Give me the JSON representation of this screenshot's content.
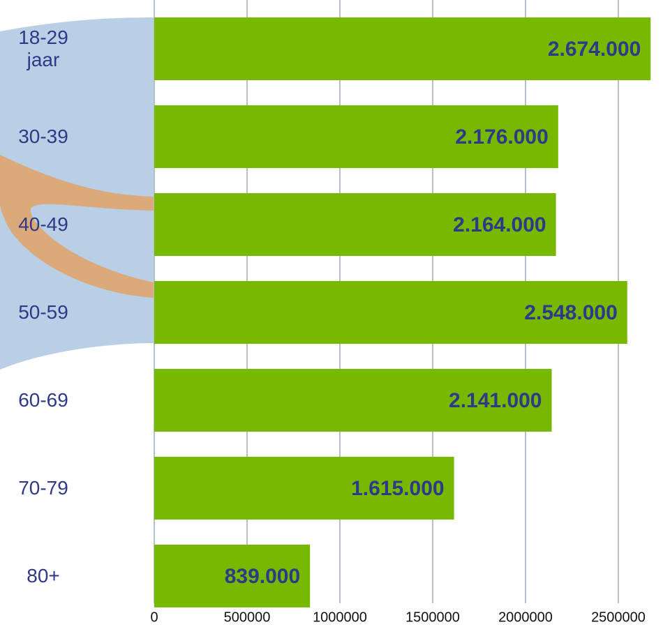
{
  "chart_data": {
    "type": "hbar",
    "categories": [
      "18-29 jaar",
      "30-39",
      "40-49",
      "50-59",
      "60-69",
      "70-79",
      "80+"
    ],
    "values": [
      2674000,
      2176000,
      2164000,
      2548000,
      2141000,
      1615000,
      839000
    ],
    "value_labels": [
      "2.674.000",
      "2.176.000",
      "2.164.000",
      "2.548.000",
      "2.141.000",
      "1.615.000",
      "839.000"
    ],
    "color": "#76b900",
    "xlim": [
      0,
      2700000
    ],
    "xticks": [
      0,
      500000,
      1000000,
      1500000,
      2000000,
      2500000
    ],
    "grid": true
  }
}
